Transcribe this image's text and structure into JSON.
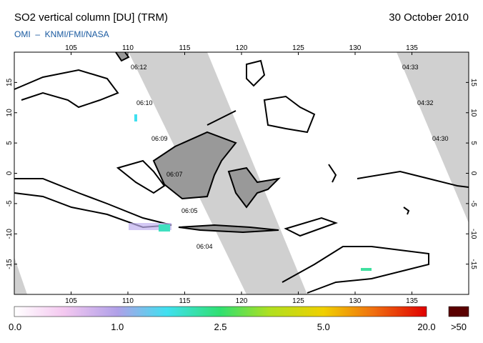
{
  "header": {
    "title": "SO2 vertical column [DU] (TRM)",
    "date": "30 October 2010",
    "subtitle": "OMI  –  KNMI/FMI/NASA"
  },
  "map": {
    "xlim": [
      100,
      140
    ],
    "ylim": [
      -20,
      20
    ],
    "xticks": [
      105,
      110,
      115,
      120,
      125,
      130,
      135
    ],
    "yticks": [
      15,
      10,
      5,
      0,
      -5,
      -10,
      -15
    ],
    "overpass_times": [
      "06:12",
      "06:10",
      "06:09",
      "06:07",
      "06:05",
      "06:04",
      "04:33",
      "04:32",
      "04:30"
    ]
  },
  "colorbar": {
    "labels": [
      "0.0",
      "1.0",
      "2.5",
      "5.0",
      "20.0"
    ],
    "overflow_label": ">50"
  }
}
